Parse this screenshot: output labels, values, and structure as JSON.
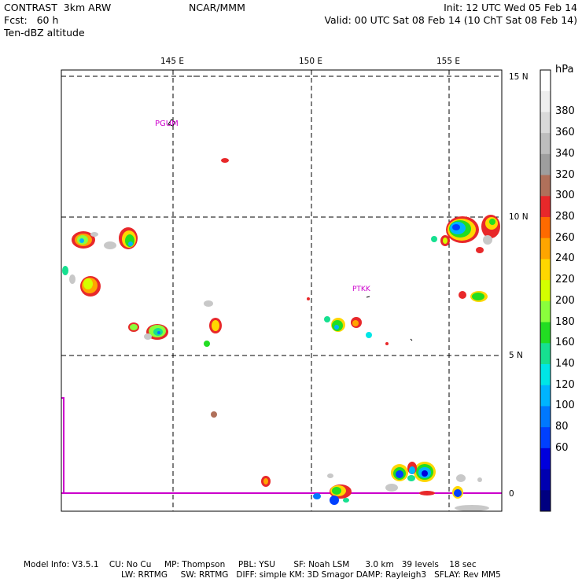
{
  "header": {
    "model": "CONTRAST  3km ARW",
    "org": "NCAR/MMM",
    "init": "Init: 12 UTC Wed 05 Feb 14",
    "fcst": "Fcst:   60 h",
    "valid": "Valid: 00 UTC Sat 08 Feb 14 (10 ChT Sat 08 Feb 14)",
    "field": "Ten-dBZ altitude"
  },
  "map": {
    "lon_labels": [
      "145 E",
      "150 E",
      "155 E"
    ],
    "lat_labels": [
      "15 N",
      "10 N",
      "5 N",
      "0"
    ],
    "stations": [
      "PGUM",
      "PTKK"
    ],
    "colors": {
      "grid": "#000000",
      "station": "#cc00cc",
      "equator": "#cc00cc"
    }
  },
  "colorbar": {
    "unit": "hPa",
    "levels": [
      "380",
      "360",
      "340",
      "320",
      "300",
      "280",
      "260",
      "240",
      "220",
      "200",
      "180",
      "160",
      "140",
      "120",
      "100",
      "80",
      "60"
    ],
    "colors": [
      "#ffffff",
      "#eeeeee",
      "#d9d9d9",
      "#bdbdbd",
      "#9e9e9e",
      "#b0705a",
      "#e8282a",
      "#ff6a00",
      "#ffa500",
      "#ffd700",
      "#d4ff00",
      "#8aff3c",
      "#22dd22",
      "#16e090",
      "#00e6e6",
      "#00b4ff",
      "#0078ff",
      "#0040ff",
      "#0000dd",
      "#0000b0",
      "#000080"
    ]
  },
  "footer": {
    "line1": "Model Info: V3.5.1    CU: No Cu     MP: Thompson     PBL: YSU       SF: Noah LSM      3.0 km   39 levels    18 sec",
    "line2": "LW: RRTMG     SW: RRTMG   DIFF: simple KM: 3D Smagor DAMP: Rayleigh3   SFLAY: Rev MM5"
  }
}
